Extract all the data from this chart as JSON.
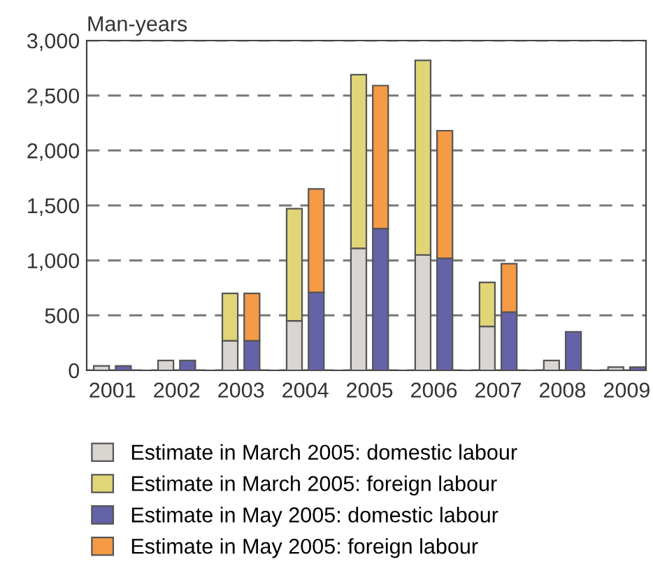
{
  "chart_data": {
    "type": "bar",
    "stacked": true,
    "ylabel": "Man-years",
    "x": [
      2000.83,
      2001.17,
      2001.83,
      2002.17,
      2002.83,
      2003.17,
      2003.83,
      2004.17,
      2004.83,
      2005.17,
      2005.83,
      2006.17,
      2006.83,
      2007.17,
      2007.83,
      2008.17,
      2008.83,
      2009.17
    ],
    "xlim": [
      2000.6,
      2009.3
    ],
    "xticks": [
      2001,
      2002,
      2003,
      2004,
      2005,
      2006,
      2007,
      2008,
      2009
    ],
    "ylim": [
      0,
      3000
    ],
    "yticks": [
      0,
      500,
      {
        "value": 1000,
        "label": "1,000"
      },
      {
        "value": 1500,
        "label": "1,500"
      },
      {
        "value": 2000,
        "label": "2,000"
      },
      {
        "value": 2500,
        "label": "2,500"
      },
      {
        "value": 3000,
        "label": "3,000"
      }
    ],
    "grid": "y",
    "legend": "bottom",
    "series": [
      {
        "name": "Estimate in March 2005: domestic labour",
        "color": "#d9d5d0",
        "values": [
          40,
          null,
          90,
          null,
          270,
          null,
          450,
          null,
          1110,
          null,
          1050,
          null,
          400,
          null,
          90,
          null,
          30,
          null
        ]
      },
      {
        "name": "Estimate in March 2005: foreign labour",
        "color": "#e0d677",
        "values": [
          null,
          null,
          null,
          null,
          430,
          null,
          1020,
          null,
          1580,
          null,
          1770,
          null,
          400,
          null,
          null,
          null,
          null,
          null
        ]
      },
      {
        "name": "Estimate in May 2005: domestic labour",
        "color": "#6463a8",
        "values": [
          null,
          40,
          null,
          90,
          null,
          270,
          null,
          710,
          null,
          1290,
          null,
          1020,
          null,
          530,
          null,
          350,
          null,
          30
        ]
      },
      {
        "name": "Estimate in May 2005: foreign labour",
        "color": "#f59a45",
        "values": [
          null,
          null,
          null,
          null,
          null,
          430,
          null,
          940,
          null,
          1300,
          null,
          1160,
          null,
          440,
          null,
          null,
          null,
          null
        ]
      }
    ]
  }
}
